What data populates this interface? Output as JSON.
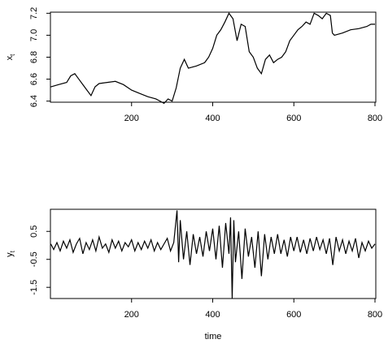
{
  "chart_data": [
    {
      "type": "line",
      "ylabel": "x",
      "ylabel_sub": "t",
      "color": "#000000",
      "xlim": [
        0,
        802
      ],
      "ylim": [
        6.39,
        7.21
      ],
      "xticks": [
        200,
        400,
        600,
        800
      ],
      "yticks": [
        {
          "value": 6.4,
          "label": "6.4"
        },
        {
          "value": 6.6,
          "label": "6.6"
        },
        {
          "value": 6.8,
          "label": "6.8"
        },
        {
          "value": 7.0,
          "label": "7.0"
        },
        {
          "value": 7.2,
          "label": "7.2"
        }
      ],
      "x": [
        1,
        20,
        40,
        50,
        60,
        70,
        80,
        90,
        100,
        110,
        120,
        140,
        160,
        180,
        200,
        220,
        240,
        260,
        270,
        280,
        290,
        300,
        310,
        320,
        330,
        340,
        360,
        380,
        390,
        400,
        410,
        420,
        430,
        440,
        450,
        455,
        460,
        470,
        480,
        490,
        500,
        510,
        520,
        530,
        540,
        550,
        560,
        570,
        580,
        590,
        600,
        610,
        620,
        630,
        640,
        650,
        660,
        670,
        680,
        690,
        695,
        700,
        720,
        740,
        760,
        780,
        790,
        800
      ],
      "values": [
        6.53,
        6.55,
        6.57,
        6.63,
        6.65,
        6.6,
        6.55,
        6.5,
        6.45,
        6.53,
        6.56,
        6.57,
        6.58,
        6.55,
        6.5,
        6.47,
        6.44,
        6.42,
        6.4,
        6.38,
        6.42,
        6.4,
        6.52,
        6.7,
        6.78,
        6.7,
        6.72,
        6.75,
        6.8,
        6.88,
        7.0,
        7.05,
        7.12,
        7.2,
        7.15,
        7.05,
        6.95,
        7.1,
        7.08,
        6.85,
        6.8,
        6.7,
        6.65,
        6.78,
        6.82,
        6.75,
        6.78,
        6.8,
        6.85,
        6.95,
        7.0,
        7.05,
        7.08,
        7.12,
        7.1,
        7.2,
        7.18,
        7.15,
        7.2,
        7.18,
        7.02,
        7.0,
        7.02,
        7.05,
        7.06,
        7.08,
        7.1,
        7.1
      ]
    },
    {
      "type": "line",
      "ylabel": "y",
      "ylabel_sub": "t",
      "xlabel": "time",
      "color": "#000000",
      "xlim": [
        0,
        802
      ],
      "ylim": [
        -1.9,
        1.29
      ],
      "xticks": [
        200,
        400,
        600,
        800
      ],
      "yticks": [
        -1.5,
        -0.5,
        0.5
      ],
      "x": [
        1,
        8,
        16,
        24,
        32,
        40,
        48,
        56,
        64,
        72,
        80,
        88,
        96,
        104,
        112,
        120,
        128,
        136,
        144,
        152,
        160,
        168,
        176,
        184,
        192,
        200,
        208,
        216,
        224,
        232,
        240,
        248,
        256,
        264,
        272,
        280,
        288,
        296,
        304,
        312,
        316,
        320,
        328,
        336,
        344,
        352,
        360,
        368,
        376,
        384,
        392,
        400,
        408,
        416,
        424,
        432,
        440,
        444,
        448,
        452,
        456,
        464,
        472,
        480,
        488,
        496,
        504,
        512,
        520,
        528,
        536,
        544,
        552,
        560,
        568,
        576,
        584,
        592,
        600,
        608,
        616,
        624,
        632,
        640,
        648,
        656,
        664,
        672,
        680,
        688,
        696,
        704,
        712,
        720,
        728,
        736,
        744,
        752,
        760,
        768,
        776,
        784,
        792,
        800
      ],
      "values": [
        0.05,
        -0.15,
        0.1,
        -0.2,
        0.15,
        -0.1,
        0.2,
        -0.25,
        0.05,
        0.25,
        -0.3,
        0.1,
        -0.15,
        0.2,
        -0.2,
        0.3,
        -0.1,
        0.05,
        -0.25,
        0.2,
        -0.1,
        0.15,
        -0.2,
        0.1,
        -0.05,
        0.2,
        -0.2,
        0.1,
        -0.15,
        0.15,
        -0.1,
        0.2,
        -0.2,
        0.1,
        -0.15,
        0.05,
        0.25,
        -0.2,
        0.1,
        1.25,
        -0.6,
        0.9,
        -0.5,
        0.5,
        -0.7,
        0.4,
        -0.3,
        0.3,
        -0.4,
        0.5,
        -0.2,
        0.6,
        -0.5,
        0.7,
        -0.8,
        0.8,
        -0.3,
        1.0,
        -1.9,
        0.9,
        -0.6,
        0.5,
        -1.2,
        0.6,
        -0.4,
        0.3,
        -0.8,
        0.5,
        -1.1,
        0.4,
        -0.5,
        0.3,
        -0.3,
        0.4,
        -0.3,
        0.2,
        -0.4,
        0.3,
        -0.2,
        0.3,
        -0.25,
        0.2,
        -0.3,
        0.25,
        -0.2,
        0.3,
        -0.15,
        0.2,
        -0.3,
        0.25,
        -0.7,
        0.3,
        -0.2,
        0.2,
        -0.3,
        0.15,
        -0.2,
        0.25,
        -0.45,
        0.1,
        -0.2,
        0.15,
        -0.1,
        0.05
      ]
    }
  ]
}
